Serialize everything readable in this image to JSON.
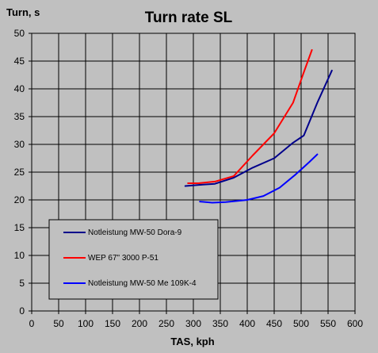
{
  "chart_data": {
    "type": "line",
    "title": "Turn rate SL",
    "ylabel": "Turn, s",
    "xlabel": "TAS, kph",
    "xlim": [
      0,
      600
    ],
    "ylim": [
      0,
      50
    ],
    "xticks": [
      0,
      50,
      100,
      150,
      200,
      250,
      300,
      350,
      400,
      450,
      500,
      550,
      600
    ],
    "yticks": [
      0,
      5,
      10,
      15,
      20,
      25,
      30,
      35,
      40,
      45,
      50
    ],
    "grid": true,
    "plot_background": "#c0c0c0",
    "legend_position": "lower-left",
    "series": [
      {
        "name": "Notleistung MW-50 Dora-9",
        "color": "#00008b",
        "x": [
          285,
          310,
          340,
          375,
          410,
          450,
          485,
          505,
          530,
          557
        ],
        "y": [
          22.5,
          22.7,
          22.9,
          24.0,
          25.8,
          27.5,
          30.3,
          31.6,
          37.5,
          43.3
        ]
      },
      {
        "name": "WEP 67\" 3000 P-51",
        "color": "#ff0000",
        "x": [
          290,
          310,
          340,
          375,
          410,
          450,
          485,
          505,
          520
        ],
        "y": [
          23.0,
          23.0,
          23.3,
          24.3,
          28.0,
          32.0,
          37.5,
          43.0,
          47.0
        ]
      },
      {
        "name": "Notleistung MW-50 Me 109K-4",
        "color": "#0000ff",
        "x": [
          312,
          335,
          360,
          400,
          430,
          460,
          490,
          515,
          530
        ],
        "y": [
          19.7,
          19.5,
          19.6,
          20.0,
          20.7,
          22.2,
          24.6,
          26.8,
          28.2
        ]
      }
    ]
  }
}
